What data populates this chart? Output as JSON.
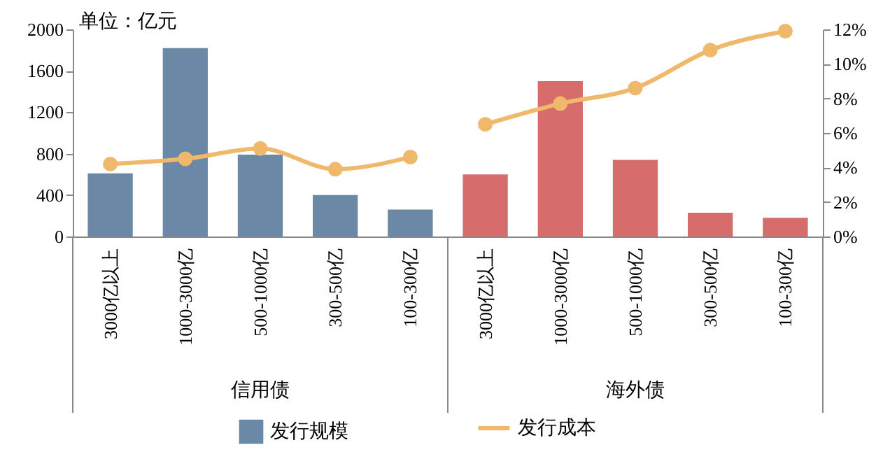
{
  "chart_data": {
    "type": "bar",
    "ylabel": "单位：亿元",
    "categories": [
      "3000亿以上",
      "1000-3000亿",
      "500-1000亿",
      "300-500亿",
      "100-300亿",
      "3000亿以上",
      "1000-3000亿",
      "500-1000亿",
      "300-500亿",
      "100-300亿"
    ],
    "annotations": [
      "信用债",
      "海外债"
    ],
    "series": [
      {
        "name": "发行规模",
        "color": "#6b88a6",
        "colors": [
          "#6b88a6",
          "#6b88a6",
          "#6b88a6",
          "#6b88a6",
          "#6b88a6",
          "#d76c6c",
          "#d76c6c",
          "#d76c6c",
          "#d76c6c",
          "#d76c6c"
        ],
        "values": [
          610,
          1820,
          790,
          400,
          260,
          600,
          1500,
          740,
          230,
          180
        ]
      },
      {
        "name": "发行成本",
        "type": "line",
        "axis": "y2",
        "color": "#f0b86b",
        "values": [
          4.2,
          4.5,
          5.1,
          3.9,
          4.6,
          6.5,
          7.7,
          8.6,
          10.8,
          11.9
        ]
      }
    ],
    "ylim": [
      0,
      2000
    ],
    "yticks": [
      0,
      400,
      800,
      1200,
      1600,
      2000
    ],
    "y2lim": [
      0,
      12
    ],
    "y2ticks": [
      {
        "value": 0,
        "label": "0%"
      },
      {
        "value": 2,
        "label": "2%"
      },
      {
        "value": 4,
        "label": "4%"
      },
      {
        "value": 6,
        "label": "6%"
      },
      {
        "value": 8,
        "label": "8%"
      },
      {
        "value": 10,
        "label": "10%"
      },
      {
        "value": 12,
        "label": "12%"
      }
    ],
    "legend": "bottom",
    "marker": "circle",
    "line_style": "solid"
  }
}
